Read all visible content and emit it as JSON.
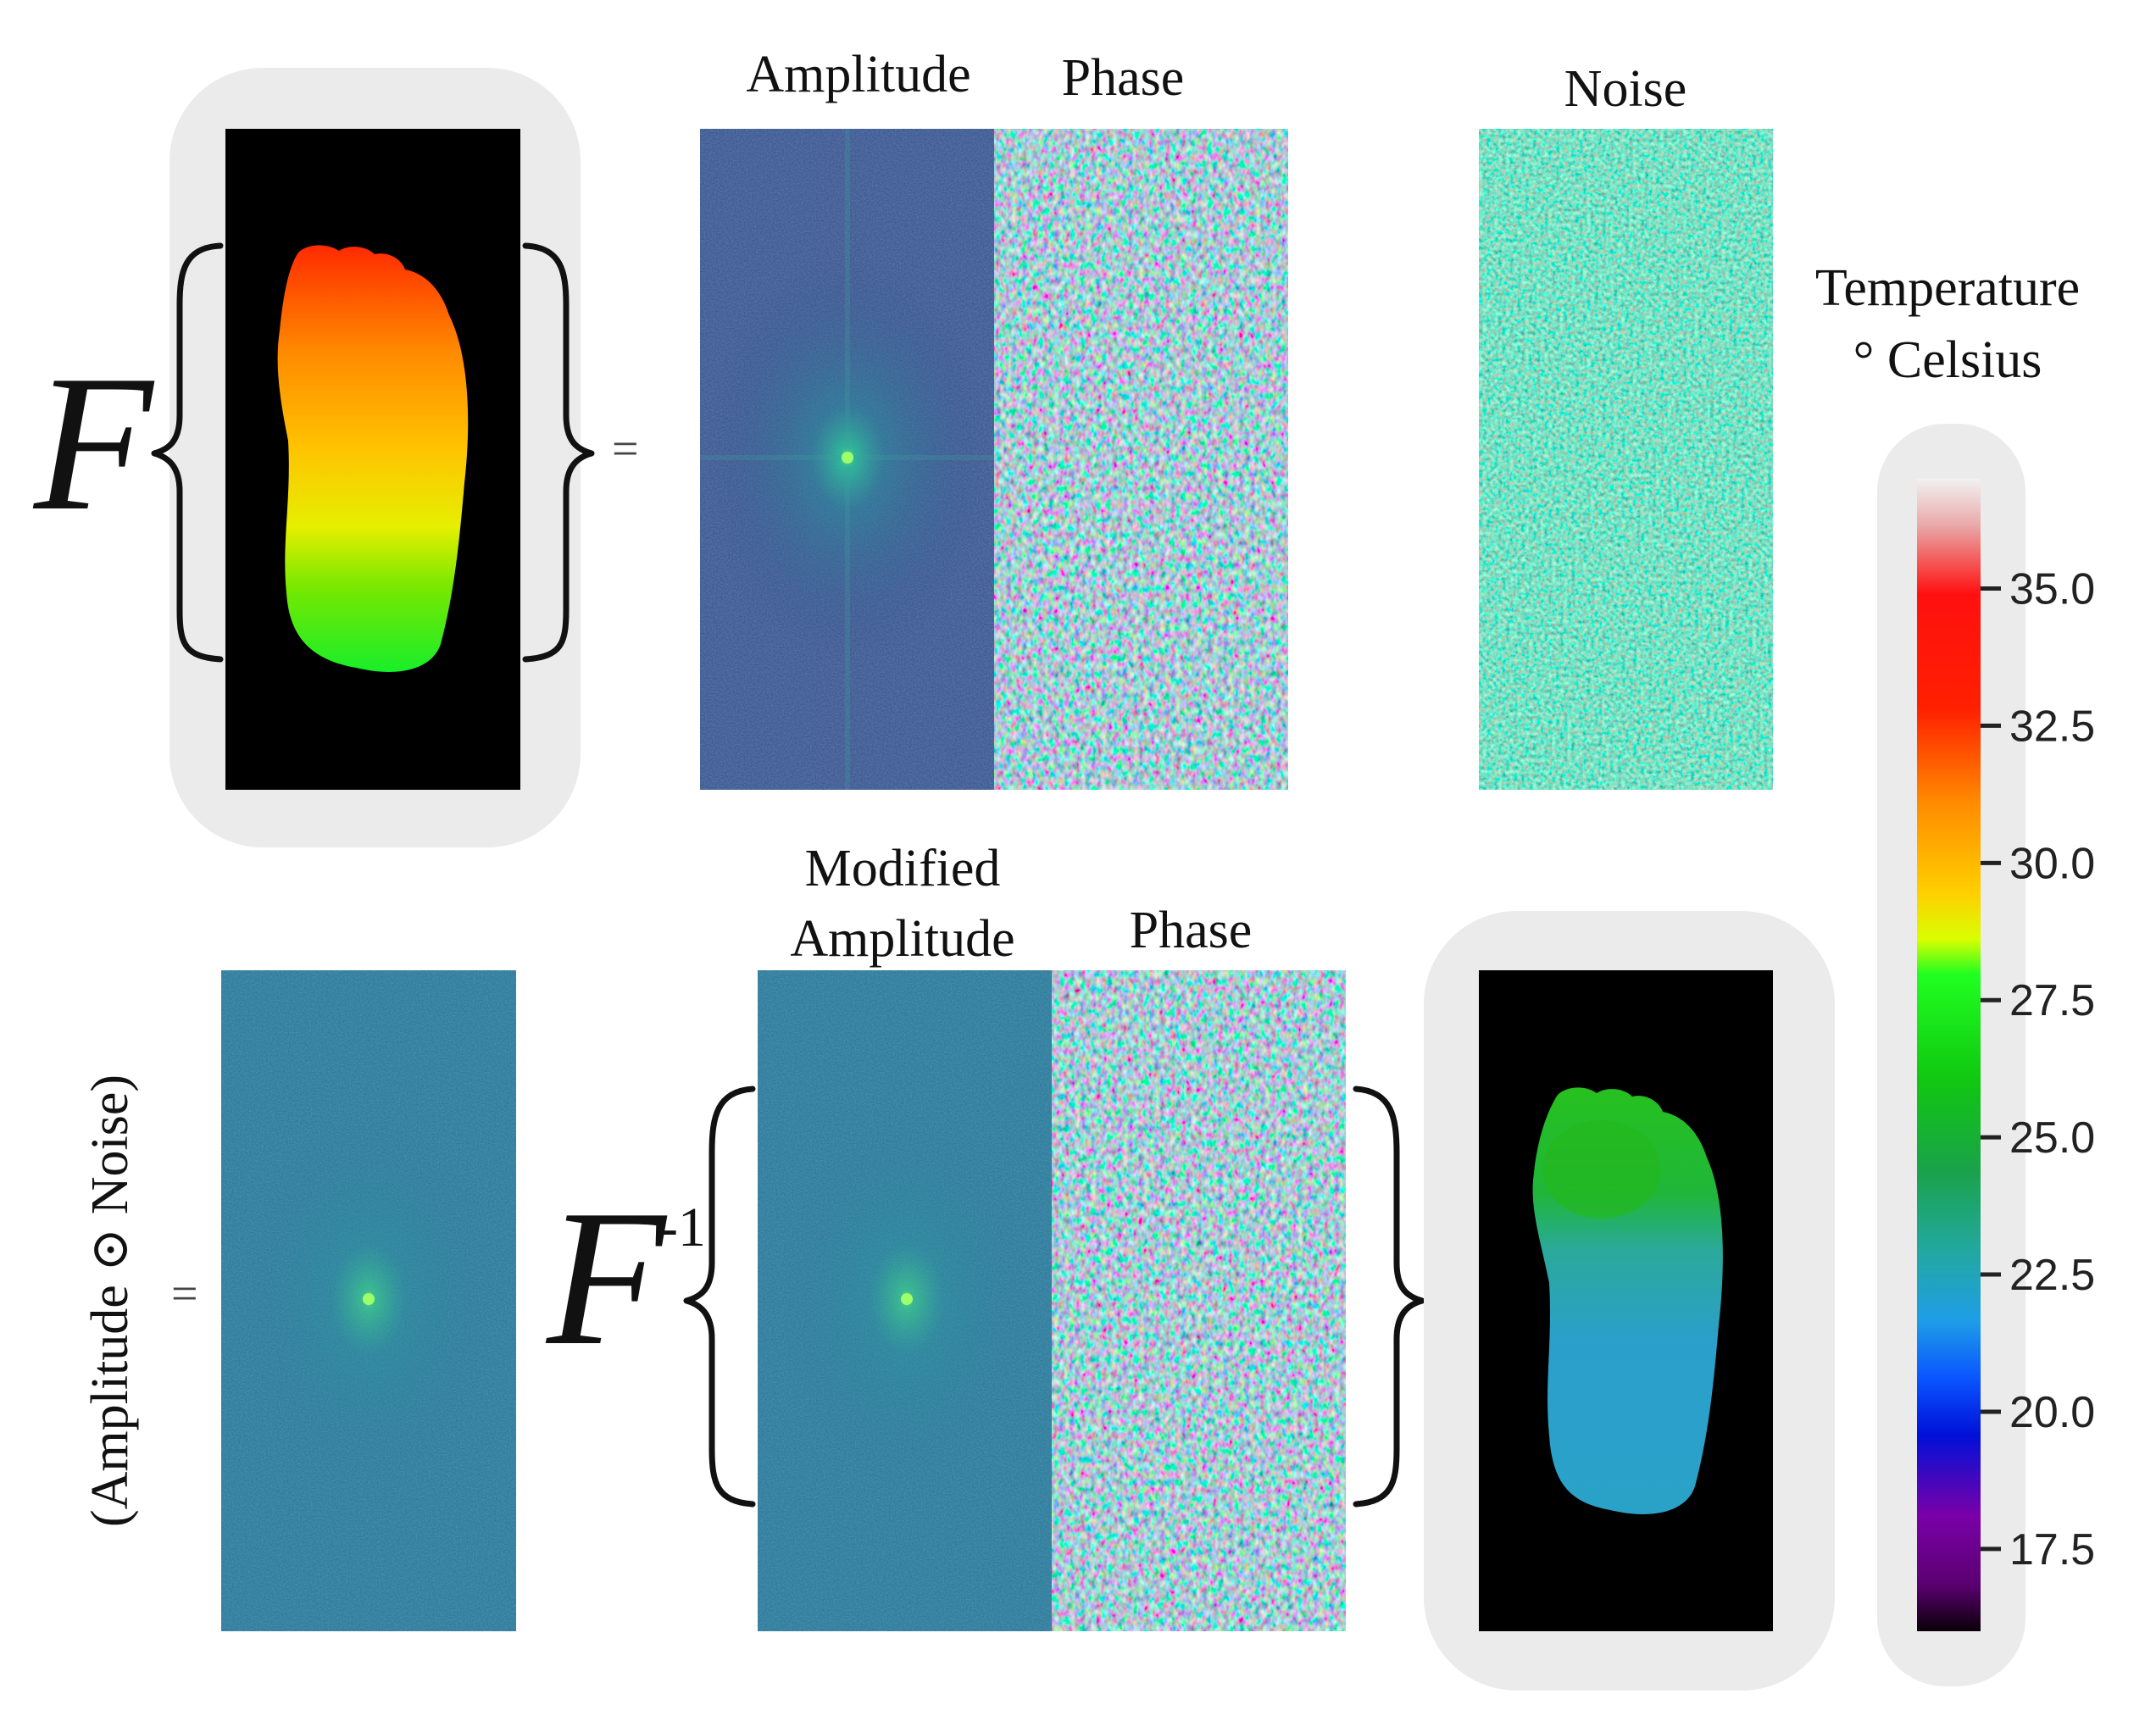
{
  "panels": {
    "amplitude_label": "Amplitude",
    "phase_label_top": "Phase",
    "noise_label": "Noise",
    "modified_amplitude_line1": "Modified",
    "modified_amplitude_line2": "Amplitude",
    "phase_label_bottom": "Phase",
    "product_label": "(Amplitude ⊙ Noise)"
  },
  "operators": {
    "fourier": "F",
    "inverse_fourier": "F",
    "inverse_exponent": "-1",
    "equals": "="
  },
  "colorbar": {
    "title_line1": "Temperature",
    "title_line2": "° Celsius",
    "ticks": [
      "35.0",
      "32.5",
      "30.0",
      "27.5",
      "25.0",
      "22.5",
      "20.0",
      "17.5"
    ],
    "tick_values": [
      35.0,
      32.5,
      30.0,
      27.5,
      25.0,
      22.5,
      20.0,
      17.5
    ],
    "range": [
      16.0,
      37.0
    ]
  },
  "colors": {
    "frame_bg": "#ebebeb",
    "spectrum_bg": "#3e5c93",
    "noise_bg": "#23938a",
    "hot_foot_top": "#ff3b00",
    "hot_foot_mid": "#ffd400",
    "hot_foot_bottom": "#22ee22",
    "cool_foot_top": "#22c22a",
    "cool_foot_body": "#2aa5c8"
  }
}
